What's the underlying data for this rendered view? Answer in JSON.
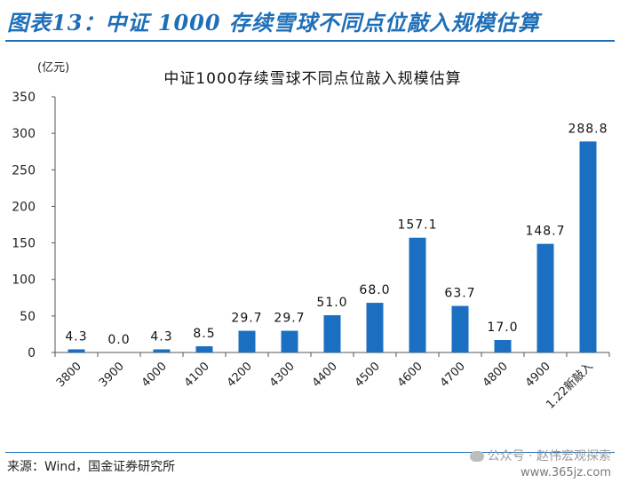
{
  "header": {
    "title": "图表13：中证 1000 存续雪球不同点位敲入规模估算"
  },
  "source": "来源：Wind，国金证券研究所",
  "watermark": {
    "text": "公众号 · 赵伟宏观探索",
    "site": "www.365jz.com",
    "icon": "wechat-icon"
  },
  "colors": {
    "accent": "#1f6fb8",
    "bar": "#1a6fc1"
  },
  "chart_data": {
    "type": "bar",
    "title": "中证1000存续雪球不同点位敲入规模估算",
    "unit_label": "(亿元)",
    "categories": [
      "3800",
      "3900",
      "4000",
      "4100",
      "4200",
      "4300",
      "4400",
      "4500",
      "4600",
      "4700",
      "4800",
      "4900",
      "1.22新敲入"
    ],
    "values": [
      4.3,
      0.0,
      4.3,
      8.5,
      29.7,
      29.7,
      51.0,
      68.0,
      157.1,
      63.7,
      17.0,
      148.7,
      288.8
    ],
    "value_labels": [
      "4.3",
      "0.0",
      "4.3",
      "8.5",
      "29.7",
      "29.7",
      "51.0",
      "68.0",
      "157.1",
      "63.7",
      "17.0",
      "148.7",
      "288.8"
    ],
    "ylim": [
      0,
      350
    ],
    "yticks": [
      0,
      50,
      100,
      150,
      200,
      250,
      300,
      350
    ],
    "grid": false,
    "legend": "none"
  }
}
